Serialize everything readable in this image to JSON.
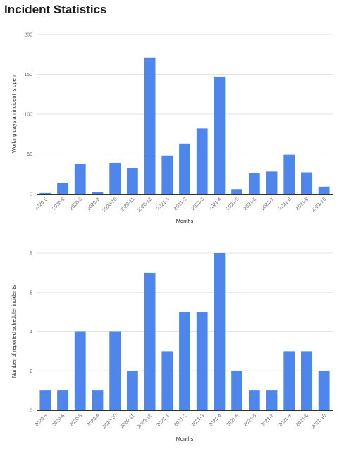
{
  "page": {
    "title": "Incident Statistics"
  },
  "colors": {
    "bar": "#4f86ec",
    "grid": "#e3e3e3",
    "baseline": "#333333",
    "tick_text": "#666666",
    "axis_title_text": "#222222"
  },
  "chart_data": [
    {
      "type": "bar",
      "title": "",
      "categories": [
        "2020-5",
        "2020-6",
        "2020-8",
        "2020-9",
        "2020-10",
        "2020-11",
        "2020-12",
        "2021-1",
        "2021-2",
        "2021-3",
        "2021-4",
        "2021-5",
        "2021-6",
        "2021-7",
        "2021-8",
        "2021-9",
        "2021-10"
      ],
      "values": [
        1,
        14,
        38,
        2,
        39,
        32,
        171,
        48,
        63,
        82,
        147,
        6,
        26,
        28,
        49,
        27,
        9
      ],
      "xlabel": "Months",
      "ylabel": "Working days an incident is open",
      "ylim": [
        0,
        200
      ],
      "yticks": [
        0,
        50,
        100,
        150,
        200
      ],
      "grid": true,
      "legend": "none"
    },
    {
      "type": "bar",
      "title": "",
      "categories": [
        "2020-5",
        "2020-6",
        "2020-8",
        "2020-9",
        "2020-10",
        "2020-11",
        "2020-12",
        "2021-1",
        "2021-2",
        "2021-3",
        "2021-4",
        "2021-5",
        "2021-6",
        "2021-7",
        "2021-8",
        "2021-9",
        "2021-10"
      ],
      "values": [
        1,
        1,
        4,
        1,
        4,
        2,
        7,
        3,
        5,
        5,
        8,
        2,
        1,
        1,
        3,
        3,
        2
      ],
      "xlabel": "Months",
      "ylabel": "Number of reported scheduler incidents",
      "ylim": [
        0,
        8
      ],
      "yticks": [
        0,
        2,
        4,
        6,
        8
      ],
      "grid": true,
      "legend": "none"
    }
  ]
}
